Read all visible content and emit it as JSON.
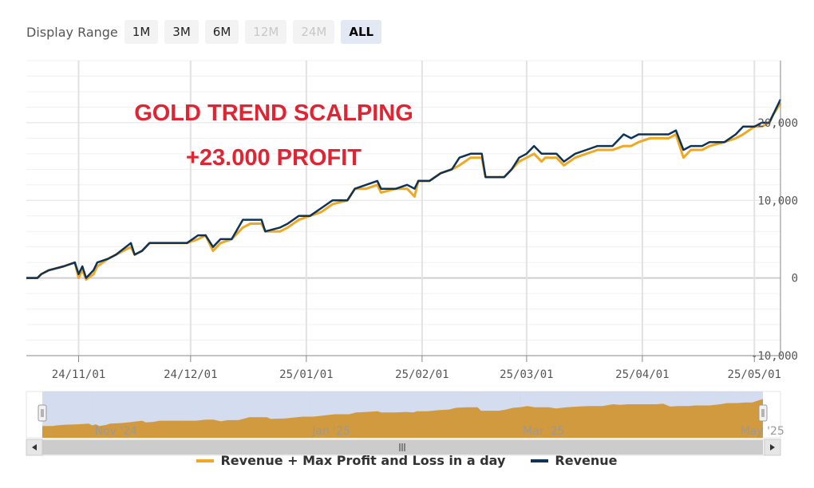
{
  "range_selector": {
    "label": "Display Range",
    "buttons": [
      {
        "label": "1M",
        "state": "normal"
      },
      {
        "label": "3M",
        "state": "normal"
      },
      {
        "label": "6M",
        "state": "normal"
      },
      {
        "label": "12M",
        "state": "disabled"
      },
      {
        "label": "24M",
        "state": "disabled"
      },
      {
        "label": "ALL",
        "state": "active"
      }
    ]
  },
  "annotation": {
    "line1": "GOLD TREND SCALPING",
    "line2": "+23.000 PROFIT",
    "color": "#e02433"
  },
  "colors": {
    "revenue": "#0e3356",
    "max_pnl": "#f0a823",
    "navigator_fill": "#d29a3e",
    "navigator_mask": "#cdd6ec"
  },
  "chart_data": {
    "type": "line",
    "title": "",
    "xlabel": "",
    "ylabel": "",
    "ylim": [
      -10000,
      28000
    ],
    "yticks": [
      -10000,
      0,
      10000,
      20000
    ],
    "ytick_labels": [
      "-10,000",
      "0",
      "10,000",
      "20,000"
    ],
    "xticks": [
      "2024-11-01",
      "2024-12-01",
      "2025-01-01",
      "2025-02-01",
      "2025-03-01",
      "2025-04-01",
      "2025-05-01"
    ],
    "xtick_labels": [
      "24/11/01",
      "24/12/01",
      "25/01/01",
      "25/02/01",
      "25/03/01",
      "25/04/01",
      "25/05/01"
    ],
    "xlim": [
      "2024-10-18",
      "2025-05-08"
    ],
    "grid": true,
    "legend_position": "bottom",
    "series": [
      {
        "name": "Revenue + Max Profit and Loss in a day",
        "color": "#f0a823",
        "points": [
          [
            "2024-10-18",
            0
          ],
          [
            "2024-10-21",
            0
          ],
          [
            "2024-10-22",
            500
          ],
          [
            "2024-10-24",
            1000
          ],
          [
            "2024-10-28",
            1500
          ],
          [
            "2024-10-31",
            2000
          ],
          [
            "2024-11-01",
            0
          ],
          [
            "2024-11-02",
            1000
          ],
          [
            "2024-11-03",
            -200
          ],
          [
            "2024-11-05",
            500
          ],
          [
            "2024-11-06",
            1500
          ],
          [
            "2024-11-09",
            2500
          ],
          [
            "2024-11-11",
            3000
          ],
          [
            "2024-11-15",
            4000
          ],
          [
            "2024-11-16",
            3000
          ],
          [
            "2024-11-18",
            3500
          ],
          [
            "2024-11-20",
            4500
          ],
          [
            "2024-11-30",
            4500
          ],
          [
            "2024-12-03",
            5000
          ],
          [
            "2024-12-05",
            5500
          ],
          [
            "2024-12-07",
            3500
          ],
          [
            "2024-12-09",
            4500
          ],
          [
            "2024-12-12",
            5000
          ],
          [
            "2024-12-15",
            6500
          ],
          [
            "2024-12-17",
            7000
          ],
          [
            "2024-12-20",
            7000
          ],
          [
            "2024-12-21",
            6000
          ],
          [
            "2024-12-25",
            6000
          ],
          [
            "2024-12-27",
            6500
          ],
          [
            "2024-12-30",
            7500
          ],
          [
            "2025-01-02",
            8000
          ],
          [
            "2025-01-05",
            8500
          ],
          [
            "2025-01-08",
            9500
          ],
          [
            "2025-01-12",
            10000
          ],
          [
            "2025-01-14",
            11500
          ],
          [
            "2025-01-17",
            11500
          ],
          [
            "2025-01-20",
            12000
          ],
          [
            "2025-01-21",
            11000
          ],
          [
            "2025-01-25",
            11500
          ],
          [
            "2025-01-28",
            11500
          ],
          [
            "2025-01-30",
            10500
          ],
          [
            "2025-01-31",
            12500
          ],
          [
            "2025-02-03",
            12500
          ],
          [
            "2025-02-06",
            13500
          ],
          [
            "2025-02-09",
            14000
          ],
          [
            "2025-02-11",
            14500
          ],
          [
            "2025-02-14",
            15500
          ],
          [
            "2025-02-17",
            15500
          ],
          [
            "2025-02-18",
            13000
          ],
          [
            "2025-02-23",
            13000
          ],
          [
            "2025-02-25",
            14000
          ],
          [
            "2025-02-27",
            15000
          ],
          [
            "2025-03-01",
            15500
          ],
          [
            "2025-03-03",
            16000
          ],
          [
            "2025-03-05",
            15000
          ],
          [
            "2025-03-06",
            15500
          ],
          [
            "2025-03-09",
            15500
          ],
          [
            "2025-03-11",
            14500
          ],
          [
            "2025-03-14",
            15500
          ],
          [
            "2025-03-17",
            16000
          ],
          [
            "2025-03-20",
            16500
          ],
          [
            "2025-03-24",
            16500
          ],
          [
            "2025-03-27",
            17000
          ],
          [
            "2025-03-29",
            17000
          ],
          [
            "2025-03-31",
            17500
          ],
          [
            "2025-04-03",
            18000
          ],
          [
            "2025-04-08",
            18000
          ],
          [
            "2025-04-10",
            18500
          ],
          [
            "2025-04-12",
            15500
          ],
          [
            "2025-04-14",
            16500
          ],
          [
            "2025-04-17",
            16500
          ],
          [
            "2025-04-19",
            17000
          ],
          [
            "2025-04-23",
            17500
          ],
          [
            "2025-04-26",
            18000
          ],
          [
            "2025-04-28",
            18500
          ],
          [
            "2025-05-01",
            19500
          ],
          [
            "2025-05-03",
            19500
          ],
          [
            "2025-05-05",
            20000
          ],
          [
            "2025-05-06",
            21000
          ],
          [
            "2025-05-08",
            22500
          ]
        ]
      },
      {
        "name": "Revenue",
        "color": "#0e3356",
        "points": [
          [
            "2024-10-18",
            0
          ],
          [
            "2024-10-21",
            0
          ],
          [
            "2024-10-22",
            500
          ],
          [
            "2024-10-24",
            1000
          ],
          [
            "2024-10-28",
            1500
          ],
          [
            "2024-10-31",
            2000
          ],
          [
            "2024-11-01",
            500
          ],
          [
            "2024-11-02",
            1500
          ],
          [
            "2024-11-03",
            0
          ],
          [
            "2024-11-05",
            1000
          ],
          [
            "2024-11-06",
            2000
          ],
          [
            "2024-11-09",
            2500
          ],
          [
            "2024-11-11",
            3000
          ],
          [
            "2024-11-15",
            4500
          ],
          [
            "2024-11-16",
            3000
          ],
          [
            "2024-11-18",
            3500
          ],
          [
            "2024-11-20",
            4500
          ],
          [
            "2024-11-30",
            4500
          ],
          [
            "2024-12-03",
            5500
          ],
          [
            "2024-12-05",
            5500
          ],
          [
            "2024-12-07",
            4000
          ],
          [
            "2024-12-09",
            5000
          ],
          [
            "2024-12-12",
            5000
          ],
          [
            "2024-12-15",
            7500
          ],
          [
            "2024-12-17",
            7500
          ],
          [
            "2024-12-20",
            7500
          ],
          [
            "2024-12-21",
            6000
          ],
          [
            "2024-12-25",
            6500
          ],
          [
            "2024-12-27",
            7000
          ],
          [
            "2024-12-30",
            8000
          ],
          [
            "2025-01-02",
            8000
          ],
          [
            "2025-01-05",
            9000
          ],
          [
            "2025-01-08",
            10000
          ],
          [
            "2025-01-12",
            10000
          ],
          [
            "2025-01-14",
            11500
          ],
          [
            "2025-01-17",
            12000
          ],
          [
            "2025-01-20",
            12500
          ],
          [
            "2025-01-21",
            11500
          ],
          [
            "2025-01-25",
            11500
          ],
          [
            "2025-01-28",
            12000
          ],
          [
            "2025-01-30",
            11500
          ],
          [
            "2025-01-31",
            12500
          ],
          [
            "2025-02-03",
            12500
          ],
          [
            "2025-02-06",
            13500
          ],
          [
            "2025-02-09",
            14000
          ],
          [
            "2025-02-11",
            15500
          ],
          [
            "2025-02-14",
            16000
          ],
          [
            "2025-02-17",
            16000
          ],
          [
            "2025-02-18",
            13000
          ],
          [
            "2025-02-23",
            13000
          ],
          [
            "2025-02-25",
            14000
          ],
          [
            "2025-02-27",
            15500
          ],
          [
            "2025-03-01",
            16000
          ],
          [
            "2025-03-03",
            17000
          ],
          [
            "2025-03-05",
            16000
          ],
          [
            "2025-03-06",
            16000
          ],
          [
            "2025-03-09",
            16000
          ],
          [
            "2025-03-11",
            15000
          ],
          [
            "2025-03-14",
            16000
          ],
          [
            "2025-03-17",
            16500
          ],
          [
            "2025-03-20",
            17000
          ],
          [
            "2025-03-24",
            17000
          ],
          [
            "2025-03-27",
            18500
          ],
          [
            "2025-03-29",
            18000
          ],
          [
            "2025-03-31",
            18500
          ],
          [
            "2025-04-03",
            18500
          ],
          [
            "2025-04-08",
            18500
          ],
          [
            "2025-04-10",
            19000
          ],
          [
            "2025-04-12",
            16500
          ],
          [
            "2025-04-14",
            17000
          ],
          [
            "2025-04-17",
            17000
          ],
          [
            "2025-04-19",
            17500
          ],
          [
            "2025-04-23",
            17500
          ],
          [
            "2025-04-26",
            18500
          ],
          [
            "2025-04-28",
            19500
          ],
          [
            "2025-05-01",
            19500
          ],
          [
            "2025-05-03",
            20000
          ],
          [
            "2025-05-05",
            20000
          ],
          [
            "2025-05-06",
            21000
          ],
          [
            "2025-05-08",
            23000
          ]
        ]
      }
    ],
    "navigator": {
      "xtick_labels": [
        "Nov '24",
        "Jan '25",
        "Mar '25",
        "May '25"
      ],
      "xticks": [
        "2024-11-01",
        "2025-01-01",
        "2025-03-01",
        "2025-05-01"
      ]
    }
  }
}
